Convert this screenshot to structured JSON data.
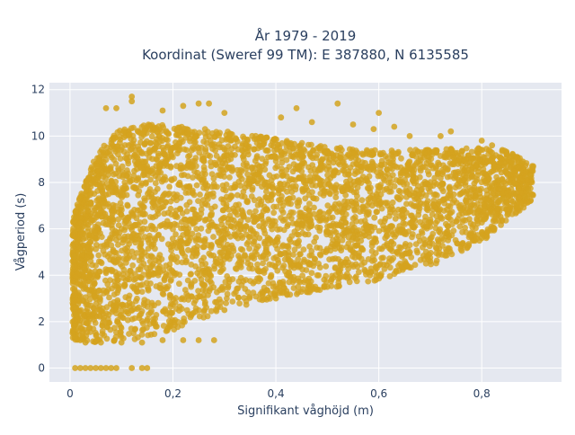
{
  "chart_data": {
    "type": "scatter",
    "title_line1": "År 1979 - 2019",
    "title_line2": "Koordinat (Sweref 99 TM): E 387880, N 6135585",
    "xlabel": "Signifikant våghöjd (m)",
    "ylabel": "Vågperiod (s)",
    "xlim": [
      -0.04,
      0.955
    ],
    "ylim": [
      -0.6,
      12.3
    ],
    "x_ticks": [
      0,
      0.2,
      0.4,
      0.6,
      0.8
    ],
    "x_tick_labels": [
      "0",
      "0,2",
      "0,4",
      "0,6",
      "0,8"
    ],
    "y_ticks": [
      0,
      2,
      4,
      6,
      8,
      10,
      12
    ],
    "y_tick_labels": [
      "0",
      "2",
      "4",
      "6",
      "8",
      "10",
      "12"
    ],
    "grid": true,
    "marker_color": "#d4a31e",
    "plot_background": "#e5e8f0",
    "envelope": {
      "upper_x": [
        0.005,
        0.03,
        0.05,
        0.08,
        0.1,
        0.15,
        0.2,
        0.3,
        0.4,
        0.5,
        0.6,
        0.7,
        0.8,
        0.85,
        0.9
      ],
      "upper_y": [
        6.8,
        8.6,
        9.8,
        10.6,
        11.0,
        11.2,
        11.1,
        10.8,
        10.4,
        10.0,
        9.8,
        9.8,
        9.8,
        9.6,
        8.8
      ],
      "lower_x": [
        0.005,
        0.03,
        0.05,
        0.1,
        0.2,
        0.3,
        0.4,
        0.5,
        0.6,
        0.7,
        0.8,
        0.85,
        0.9
      ],
      "lower_y": [
        1.2,
        1.2,
        1.1,
        1.1,
        1.6,
        2.5,
        3.0,
        3.4,
        3.8,
        4.4,
        5.4,
        6.4,
        7.2
      ]
    },
    "sample_points": [
      {
        "x": 0.005,
        "y": 1.5
      },
      {
        "x": 0.01,
        "y": 1.3
      },
      {
        "x": 0.02,
        "y": 1.2
      },
      {
        "x": 0.03,
        "y": 1.1
      },
      {
        "x": 0.06,
        "y": 1.1
      },
      {
        "x": 0.1,
        "y": 1.1
      },
      {
        "x": 0.14,
        "y": 1.1
      },
      {
        "x": 0.18,
        "y": 1.2
      },
      {
        "x": 0.22,
        "y": 1.2
      },
      {
        "x": 0.25,
        "y": 1.2
      },
      {
        "x": 0.28,
        "y": 1.2
      },
      {
        "x": 0.008,
        "y": 4.8
      },
      {
        "x": 0.008,
        "y": 6.5
      },
      {
        "x": 0.012,
        "y": 2.3
      },
      {
        "x": 0.01,
        "y": 0.0
      },
      {
        "x": 0.02,
        "y": 0.0
      },
      {
        "x": 0.03,
        "y": 0.0
      },
      {
        "x": 0.04,
        "y": 0.0
      },
      {
        "x": 0.05,
        "y": 0.0
      },
      {
        "x": 0.06,
        "y": 0.0
      },
      {
        "x": 0.07,
        "y": 0.0
      },
      {
        "x": 0.08,
        "y": 0.0
      },
      {
        "x": 0.09,
        "y": 0.0
      },
      {
        "x": 0.12,
        "y": 0.0
      },
      {
        "x": 0.14,
        "y": 0.0
      },
      {
        "x": 0.15,
        "y": 0.0
      },
      {
        "x": 0.12,
        "y": 11.7
      },
      {
        "x": 0.12,
        "y": 11.5
      },
      {
        "x": 0.07,
        "y": 11.2
      },
      {
        "x": 0.09,
        "y": 11.2
      },
      {
        "x": 0.25,
        "y": 11.4
      },
      {
        "x": 0.27,
        "y": 11.4
      },
      {
        "x": 0.22,
        "y": 11.3
      },
      {
        "x": 0.18,
        "y": 11.1
      },
      {
        "x": 0.3,
        "y": 11.0
      },
      {
        "x": 0.52,
        "y": 11.4
      },
      {
        "x": 0.44,
        "y": 11.2
      },
      {
        "x": 0.41,
        "y": 10.8
      },
      {
        "x": 0.47,
        "y": 10.6
      },
      {
        "x": 0.55,
        "y": 10.5
      },
      {
        "x": 0.59,
        "y": 10.3
      },
      {
        "x": 0.63,
        "y": 10.4
      },
      {
        "x": 0.66,
        "y": 10.0
      },
      {
        "x": 0.72,
        "y": 10.0
      },
      {
        "x": 0.74,
        "y": 10.2
      },
      {
        "x": 0.6,
        "y": 11.0
      },
      {
        "x": 0.8,
        "y": 9.8
      },
      {
        "x": 0.82,
        "y": 9.6
      },
      {
        "x": 0.84,
        "y": 9.4
      },
      {
        "x": 0.86,
        "y": 9.2
      },
      {
        "x": 0.88,
        "y": 8.9
      },
      {
        "x": 0.9,
        "y": 8.7
      },
      {
        "x": 0.895,
        "y": 8.3
      },
      {
        "x": 0.89,
        "y": 7.7
      },
      {
        "x": 0.885,
        "y": 7.4
      },
      {
        "x": 0.6,
        "y": 4.0
      },
      {
        "x": 0.7,
        "y": 4.6
      },
      {
        "x": 0.8,
        "y": 5.6
      },
      {
        "x": 0.85,
        "y": 6.6
      },
      {
        "x": 0.5,
        "y": 3.5
      },
      {
        "x": 0.4,
        "y": 3.0
      },
      {
        "x": 0.3,
        "y": 2.5
      },
      {
        "x": 0.22,
        "y": 2.0
      },
      {
        "x": 0.19,
        "y": 1.7
      },
      {
        "x": 0.84,
        "y": 7.3
      },
      {
        "x": 0.76,
        "y": 6.8
      },
      {
        "x": 0.7,
        "y": 6.4
      }
    ]
  }
}
